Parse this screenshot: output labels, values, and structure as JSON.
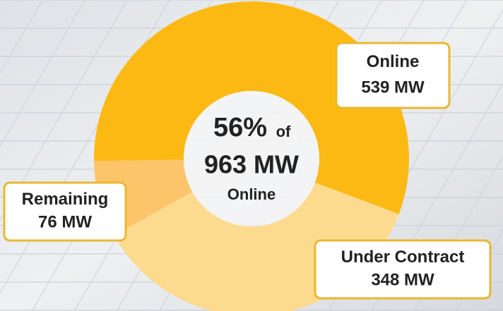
{
  "chart_data": {
    "type": "donut",
    "categories": [
      "Online",
      "Under Contract",
      "Remaining"
    ],
    "values": [
      539,
      348,
      76
    ],
    "value_labels": [
      "539 MW",
      "348 MW",
      "76 MW"
    ],
    "colors": [
      "#fdb913",
      "#fddb8e",
      "#fcc56a"
    ],
    "center_percent": "56%",
    "center_of": "of",
    "center_total": "963 MW",
    "center_label": "Online"
  }
}
